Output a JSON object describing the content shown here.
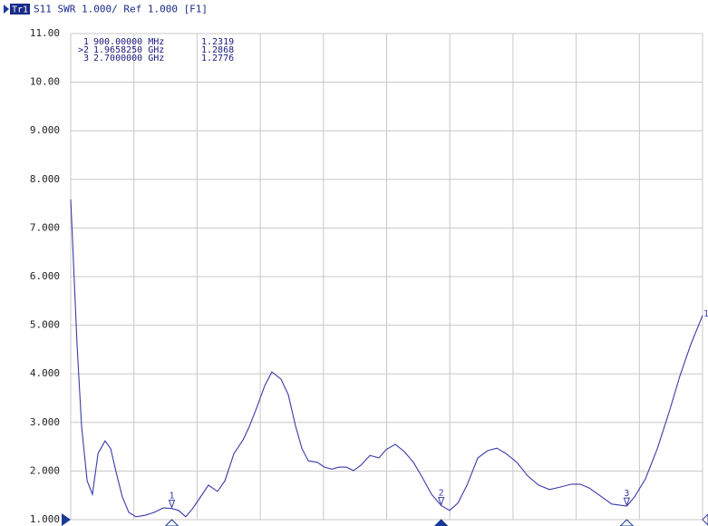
{
  "chart_data": {
    "type": "line",
    "header": {
      "trace": "Tr1",
      "text": "S11 SWR 1.000/ Ref 1.000 [F1]"
    },
    "xlim": [
      500,
      3000
    ],
    "xticks": [
      500,
      750,
      1000,
      1250,
      1500,
      1750,
      2000,
      2250,
      2500,
      2750,
      3000
    ],
    "ylim": [
      1,
      11
    ],
    "yticks": [
      {
        "value": 11,
        "label": "11.00"
      },
      {
        "value": 10,
        "label": "10.00"
      },
      {
        "value": 9,
        "label": "9.000"
      },
      {
        "value": 8,
        "label": "8.000"
      },
      {
        "value": 7,
        "label": "7.000"
      },
      {
        "value": 6,
        "label": "6.000"
      },
      {
        "value": 5,
        "label": "5.000"
      },
      {
        "value": 4,
        "label": "4.000"
      },
      {
        "value": 3,
        "label": "3.000"
      },
      {
        "value": 2,
        "label": "2.000"
      },
      {
        "value": 1,
        "label": "1.000"
      }
    ],
    "grid": true,
    "trace_label": "1",
    "series": [
      {
        "name": "S11",
        "color": "#3a3aa8",
        "x": [
          500,
          507,
          525,
          543,
          565,
          586,
          608,
          636,
          658,
          679,
          704,
          730,
          758,
          794,
          830,
          866,
          900,
          927,
          955,
          980,
          1009,
          1045,
          1081,
          1110,
          1146,
          1182,
          1207,
          1235,
          1268,
          1296,
          1332,
          1361,
          1390,
          1415,
          1440,
          1476,
          1504,
          1533,
          1562,
          1590,
          1619,
          1648,
          1684,
          1720,
          1748,
          1784,
          1820,
          1856,
          1892,
          1928,
          1966,
          1999,
          2032,
          2068,
          2111,
          2150,
          2186,
          2222,
          2265,
          2308,
          2351,
          2394,
          2437,
          2480,
          2516,
          2552,
          2595,
          2641,
          2700,
          2731,
          2774,
          2821,
          2867,
          2910,
          2953,
          3000
        ],
        "values": [
          7.59,
          6.75,
          4.6,
          2.92,
          1.8,
          1.52,
          2.36,
          2.62,
          2.46,
          1.99,
          1.47,
          1.15,
          1.06,
          1.09,
          1.15,
          1.24,
          1.23,
          1.19,
          1.06,
          1.21,
          1.43,
          1.71,
          1.58,
          1.8,
          2.36,
          2.64,
          2.92,
          3.29,
          3.76,
          4.04,
          3.89,
          3.57,
          2.92,
          2.46,
          2.21,
          2.18,
          2.08,
          2.04,
          2.08,
          2.08,
          2.01,
          2.12,
          2.32,
          2.27,
          2.44,
          2.55,
          2.4,
          2.18,
          1.86,
          1.52,
          1.29,
          1.19,
          1.34,
          1.71,
          2.27,
          2.42,
          2.47,
          2.36,
          2.18,
          1.9,
          1.71,
          1.62,
          1.67,
          1.73,
          1.73,
          1.65,
          1.49,
          1.32,
          1.28,
          1.47,
          1.84,
          2.46,
          3.2,
          3.95,
          4.6,
          5.2
        ]
      }
    ],
    "markers": [
      {
        "row_label": "1",
        "name": "1",
        "freq": "900.00000 MHz",
        "x": 900,
        "value": 1.2319
      },
      {
        "row_label": ">2",
        "name": "2",
        "freq": "1.9658250 GHz",
        "x": 1965.825,
        "value": 1.2868,
        "active": true
      },
      {
        "row_label": "3",
        "name": "3",
        "freq": "2.7000000 GHz",
        "x": 2700,
        "value": 1.2776
      }
    ]
  }
}
